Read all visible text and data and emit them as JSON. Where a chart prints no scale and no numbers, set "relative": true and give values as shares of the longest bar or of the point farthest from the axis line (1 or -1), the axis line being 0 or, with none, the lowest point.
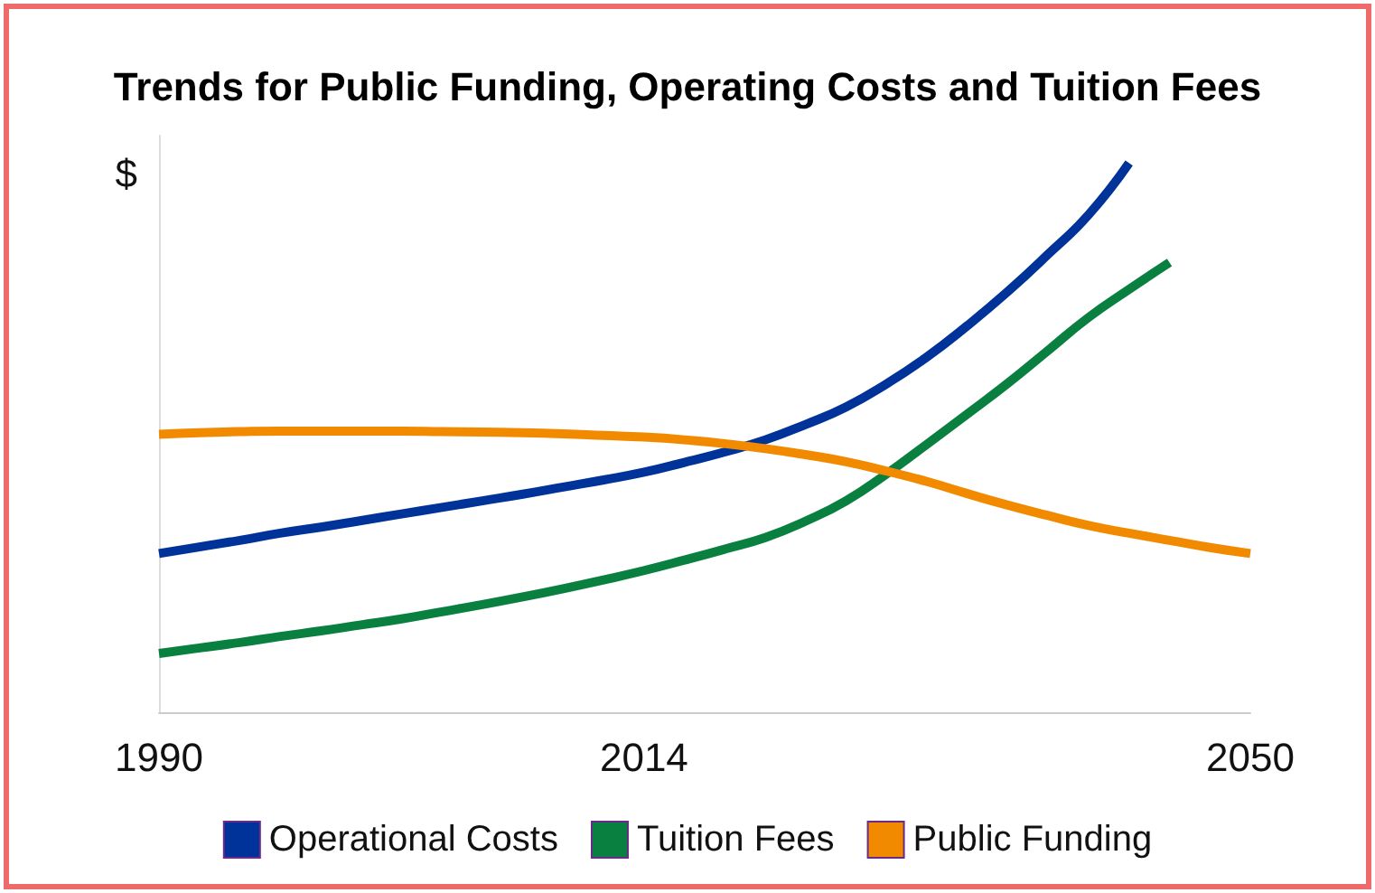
{
  "chart_data": {
    "type": "line",
    "title": "Trends for Public Funding, Operating Costs and Tuition Fees",
    "ylabel": "$",
    "relative": true,
    "categories": [
      "1990",
      null,
      null,
      null,
      null,
      null,
      null,
      null,
      null,
      null,
      null,
      null,
      "2014",
      null,
      null,
      null,
      null,
      null,
      null,
      null,
      null,
      null,
      null,
      null,
      null,
      null,
      null,
      "2050"
    ],
    "series": [
      {
        "name": "Operational Costs",
        "color": "#003399",
        "values": [
          0.289,
          0.301,
          0.313,
          0.326,
          0.337,
          0.349,
          0.361,
          0.373,
          0.385,
          0.397,
          0.41,
          0.423,
          0.437,
          0.455,
          0.474,
          0.496,
          0.524,
          0.556,
          0.598,
          0.647,
          0.704,
          0.766,
          0.834,
          0.906,
          1.0,
          null,
          null,
          null
        ]
      },
      {
        "name": "Tuition Fees",
        "color": "#0a8040",
        "values": [
          0.107,
          0.117,
          0.127,
          0.138,
          0.148,
          0.159,
          0.17,
          0.183,
          0.196,
          0.21,
          0.225,
          0.241,
          0.258,
          0.277,
          0.297,
          0.318,
          0.348,
          0.385,
          0.434,
          0.488,
          0.543,
          0.599,
          0.659,
          0.719,
          0.77,
          0.819,
          null,
          null
        ]
      },
      {
        "name": "Public Funding",
        "color": "#f28a00",
        "values": [
          0.506,
          0.509,
          0.511,
          0.512,
          0.512,
          0.512,
          0.512,
          0.511,
          0.51,
          0.509,
          0.507,
          0.504,
          0.501,
          0.496,
          0.489,
          0.48,
          0.469,
          0.456,
          0.439,
          0.42,
          0.398,
          0.377,
          0.358,
          0.34,
          0.326,
          0.313,
          0.3,
          0.289
        ]
      }
    ],
    "legend": "bottom",
    "grid": false,
    "marker": "none"
  }
}
